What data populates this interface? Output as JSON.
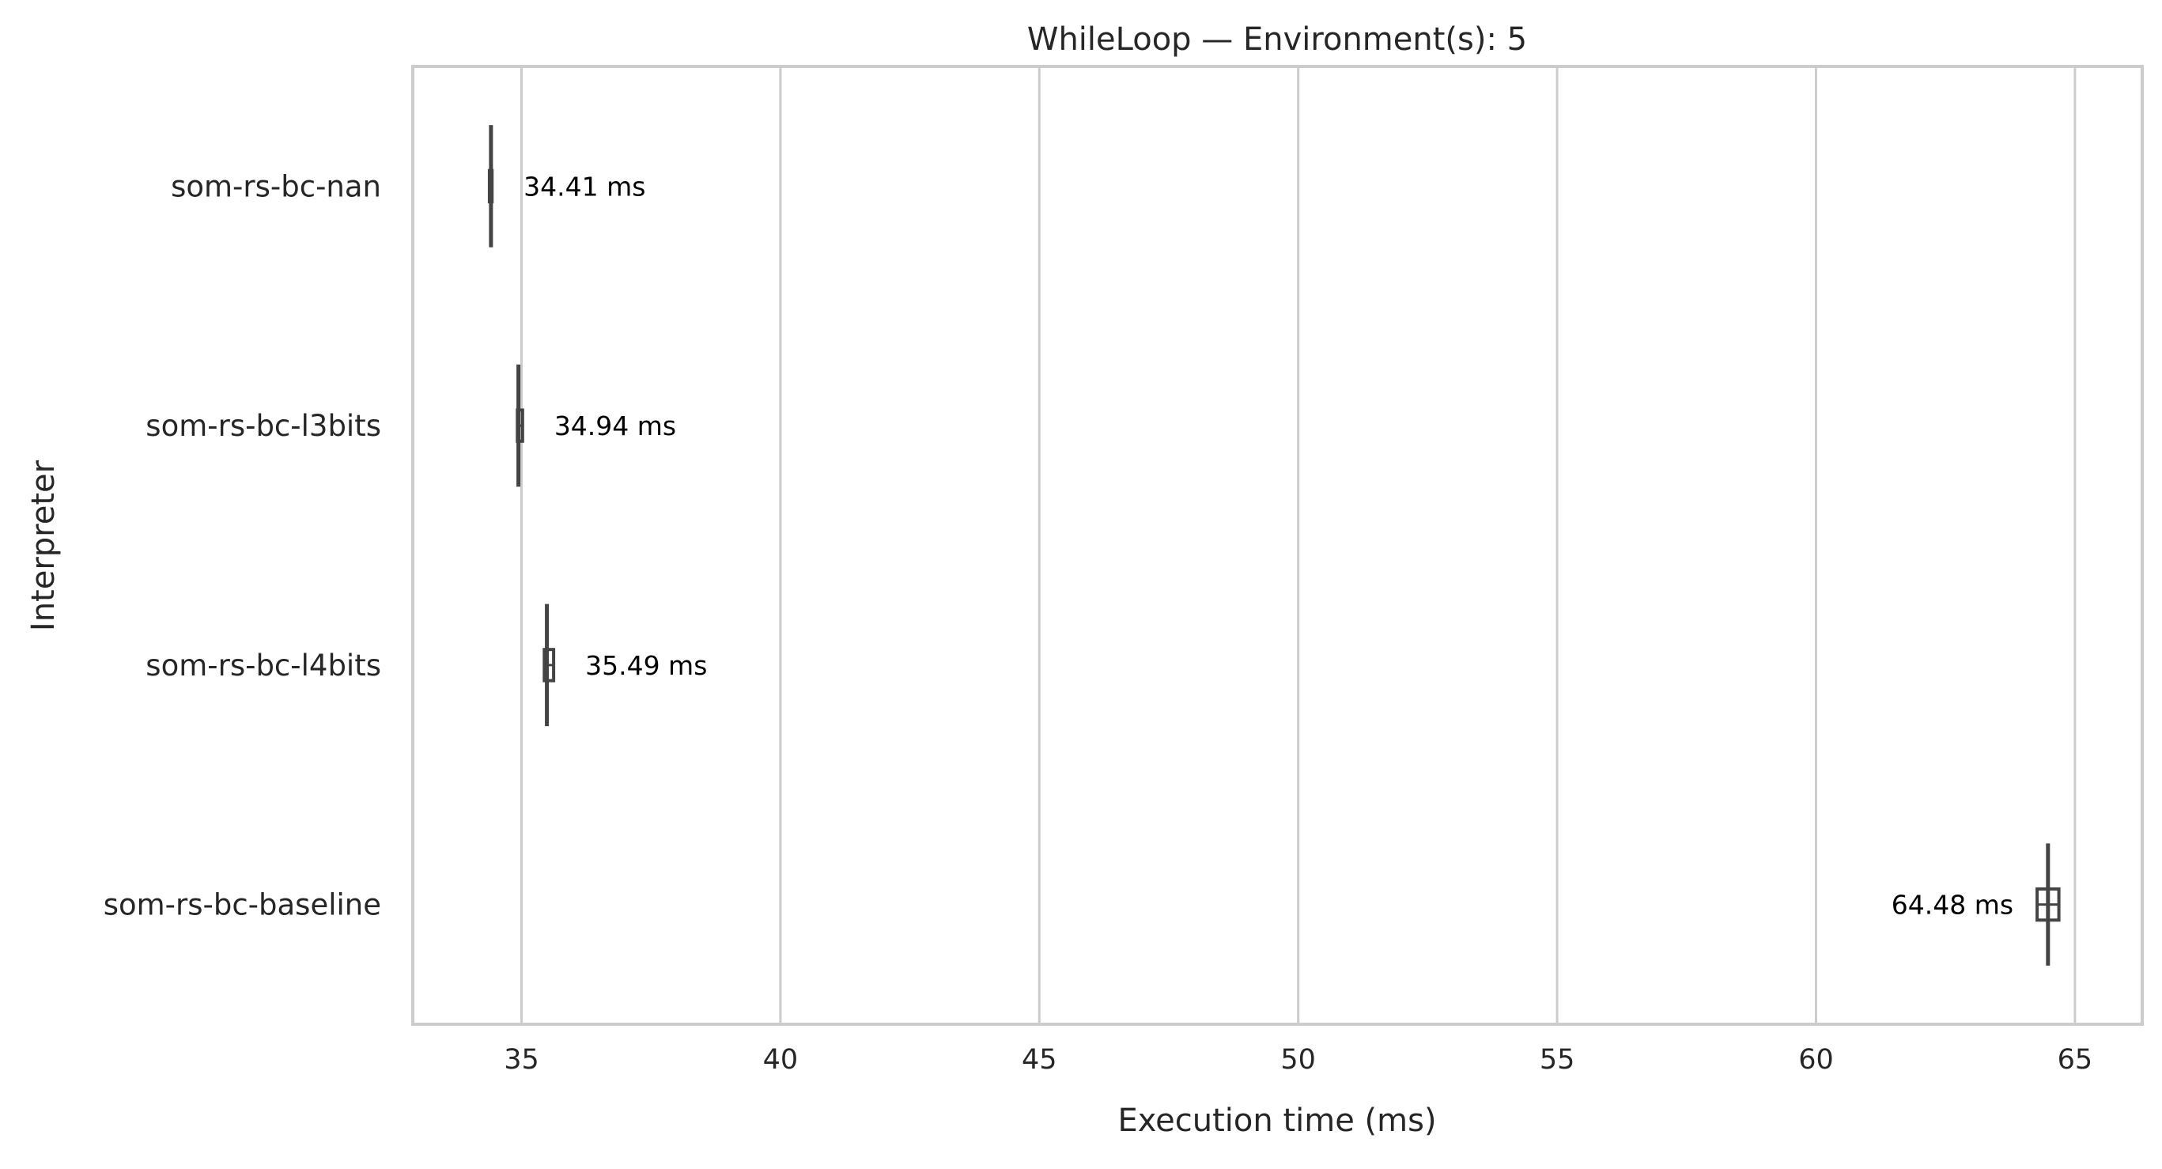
{
  "chart_data": {
    "type": "box",
    "orientation": "horizontal",
    "title": "WhileLoop — Environment(s): 5",
    "xlabel": "Execution time (ms)",
    "ylabel": "Interpreter",
    "xlim": [
      32.9,
      66.3
    ],
    "xticks": [
      35,
      40,
      45,
      50,
      55,
      60,
      65
    ],
    "grid": "vertical",
    "colors": {
      "grid": "#cccccc",
      "box": "#444444",
      "text": "#262626",
      "label": "#000000",
      "background": "#ffffff"
    },
    "categories": [
      "som-rs-bc-nan",
      "som-rs-bc-l3bits",
      "som-rs-bc-l4bits",
      "som-rs-bc-baseline"
    ],
    "series": [
      {
        "category": "som-rs-bc-nan",
        "min": 34.38,
        "q1": 34.38,
        "median": 34.41,
        "q3": 34.43,
        "max": 34.43,
        "label": "34.41 ms"
      },
      {
        "category": "som-rs-bc-l3bits",
        "min": 34.92,
        "q1": 34.92,
        "median": 34.94,
        "q3": 35.02,
        "max": 35.02,
        "label": "34.94 ms"
      },
      {
        "category": "som-rs-bc-l4bits",
        "min": 35.44,
        "q1": 35.44,
        "median": 35.49,
        "q3": 35.62,
        "max": 35.62,
        "label": "35.49 ms"
      },
      {
        "category": "som-rs-bc-baseline",
        "min": 64.27,
        "q1": 64.27,
        "median": 64.48,
        "q3": 64.69,
        "max": 64.69,
        "label": "64.48 ms"
      }
    ]
  }
}
